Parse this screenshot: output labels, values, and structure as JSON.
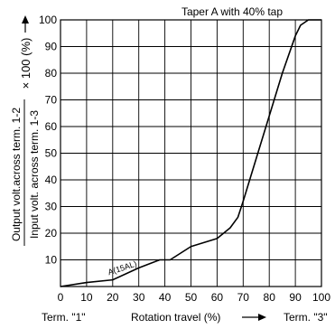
{
  "chart_data": {
    "type": "line",
    "title": "Taper A with 40% tap",
    "ylabel_numerator": "Output volt.across term. 1-2",
    "ylabel_denominator": "Input volt. across term. 1-3",
    "ylabel_multiplier": "× 100 (%)",
    "xlabel": "Rotation travel (%)",
    "term_left": "Term. \"1\"",
    "term_right": "Term. \"3\"",
    "xlim": [
      0,
      100
    ],
    "ylim": [
      0,
      100
    ],
    "xticks": [
      0,
      10,
      20,
      30,
      40,
      50,
      60,
      70,
      80,
      90,
      100
    ],
    "yticks": [
      10,
      20,
      30,
      40,
      50,
      60,
      70,
      80,
      90,
      100
    ],
    "grid": true,
    "series": [
      {
        "name": "A(15AL)",
        "x": [
          0,
          10,
          20,
          30,
          38,
          42,
          50,
          60,
          65,
          68,
          70,
          75,
          80,
          85,
          90,
          92,
          95,
          100
        ],
        "y": [
          0,
          1.5,
          2.5,
          7,
          10,
          10,
          15,
          18,
          22,
          26,
          32,
          48,
          64,
          80,
          94,
          98,
          100,
          100
        ]
      }
    ],
    "annotations": [
      {
        "text": "A(15AL)",
        "x": 24,
        "y": 6
      }
    ]
  }
}
